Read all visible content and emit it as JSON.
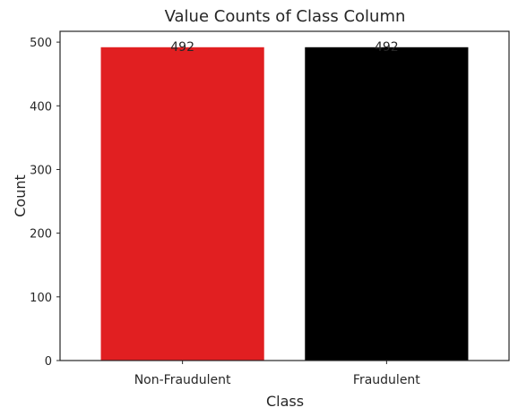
{
  "chart_data": {
    "type": "bar",
    "title": "Value Counts of Class Column",
    "xlabel": "Class",
    "ylabel": "Count",
    "categories": [
      "Non-Fraudulent",
      "Fraudulent"
    ],
    "values": [
      492,
      492
    ],
    "data_labels": [
      "492",
      "492"
    ],
    "colors": [
      "#e11f21",
      "#000000"
    ],
    "ylim": [
      0,
      517
    ],
    "yticks": [
      0,
      100,
      200,
      300,
      400,
      500
    ],
    "ytick_labels": [
      "0",
      "100",
      "200",
      "300",
      "400",
      "500"
    ],
    "grid": false,
    "legend": "none"
  }
}
